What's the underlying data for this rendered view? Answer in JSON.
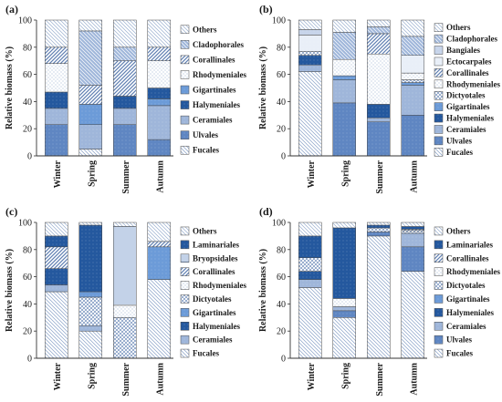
{
  "patterns": {
    "Fucales": {
      "fill": "#ffffff",
      "line": "#8aa2c8",
      "style": "diag-down"
    },
    "Ulvales": {
      "fill": "#5f86c2",
      "line": "#ffffff",
      "style": "none"
    },
    "Ceramiales": {
      "fill": "#9fb6da",
      "line": "#ffffff",
      "style": "none"
    },
    "Halymeniales": {
      "fill": "#24589e",
      "line": "#ffffff",
      "style": "none"
    },
    "Gigartinales": {
      "fill": "#6c9bd8",
      "line": "#ffffff",
      "style": "none"
    },
    "Rhodymeniales": {
      "fill": "#ffffff",
      "line": "#8aa2c8",
      "style": "dots"
    },
    "Corallinales": {
      "fill": "#ffffff",
      "line": "#5f7fb2",
      "style": "diag-up-thick"
    },
    "Cladophorales": {
      "fill": "#9fb6da",
      "line": "#ffffff",
      "style": "diag-down"
    },
    "Others": {
      "fill": "#ffffff",
      "line": "#9bb0d0",
      "style": "diag-down"
    },
    "Bangiales": {
      "fill": "#c7d4ea",
      "line": "#ffffff",
      "style": "none"
    },
    "Ectocarpales": {
      "fill": "#e9eff8",
      "line": "#ffffff",
      "style": "none"
    },
    "Dictyotales": {
      "fill": "#ffffff",
      "line": "#5f7fb2",
      "style": "cross"
    },
    "Laminariales": {
      "fill": "#24589e",
      "line": "#ffffff",
      "style": "none"
    },
    "Bryopsidales": {
      "fill": "#ffffff",
      "line": "#5f86c2",
      "style": "horiz"
    }
  },
  "chart_data": [
    {
      "panel": "(a)",
      "type": "bar",
      "stacked": true,
      "ylabel": "Relative biomass (%)",
      "ylim": [
        0,
        100
      ],
      "yticks": [
        "0",
        "20",
        "40",
        "60",
        "80",
        "100"
      ],
      "categories": [
        "Winter",
        "Spring",
        "Summer",
        "Autumn"
      ],
      "legend": [
        "Others",
        "Cladophorales",
        "Corallinales",
        "Rhodymeniales",
        "Gigartinales",
        "Halymeniales",
        "Ceramiales",
        "Ulvales",
        "Fucales"
      ],
      "series": [
        {
          "name": "Fucales",
          "values": [
            0,
            5,
            0,
            0
          ]
        },
        {
          "name": "Ulvales",
          "values": [
            23,
            0,
            23,
            12
          ]
        },
        {
          "name": "Ceramiales",
          "values": [
            12,
            18,
            12,
            25
          ]
        },
        {
          "name": "Gigartinales",
          "values": [
            0,
            15,
            0,
            5
          ]
        },
        {
          "name": "Halymeniales",
          "values": [
            12,
            0,
            9,
            8
          ]
        },
        {
          "name": "Rhodymeniales",
          "values": [
            21,
            0,
            0,
            20
          ]
        },
        {
          "name": "Corallinales",
          "values": [
            12,
            14,
            26,
            10
          ]
        },
        {
          "name": "Cladophorales",
          "values": [
            0,
            40,
            10,
            0
          ]
        },
        {
          "name": "Others",
          "values": [
            20,
            8,
            20,
            20
          ]
        }
      ]
    },
    {
      "panel": "(b)",
      "type": "bar",
      "stacked": true,
      "ylabel": "Relative biomass (%)",
      "ylim": [
        0,
        100
      ],
      "yticks": [
        "0",
        "20",
        "40",
        "60",
        "80",
        "100"
      ],
      "categories": [
        "Winter",
        "Spring",
        "Summer",
        "Autumn"
      ],
      "legend": [
        "Others",
        "Cladophorales",
        "Bangiales",
        "Ectocarpales",
        "Corallinales",
        "Rhodymeniales",
        "Dictyotales",
        "Gigartinales",
        "Halymeniales",
        "Ceramiales",
        "Ulvales",
        "Fucales"
      ],
      "series": [
        {
          "name": "Fucales",
          "values": [
            62,
            0,
            0,
            0
          ]
        },
        {
          "name": "Ulvales",
          "values": [
            0,
            39,
            25,
            30
          ]
        },
        {
          "name": "Ceramiales",
          "values": [
            5,
            17,
            3,
            22
          ]
        },
        {
          "name": "Halymeniales",
          "values": [
            7,
            0,
            10,
            0
          ]
        },
        {
          "name": "Gigartinales",
          "values": [
            0,
            3,
            0,
            2
          ]
        },
        {
          "name": "Dictyotales",
          "values": [
            3,
            0,
            0,
            2
          ]
        },
        {
          "name": "Rhodymeniales",
          "values": [
            0,
            12,
            37,
            5
          ]
        },
        {
          "name": "Corallinales",
          "values": [
            0,
            0,
            15,
            0
          ]
        },
        {
          "name": "Ectocarpales",
          "values": [
            12,
            0,
            0,
            13
          ]
        },
        {
          "name": "Bangiales",
          "values": [
            4,
            0,
            0,
            0
          ]
        },
        {
          "name": "Cladophorales",
          "values": [
            0,
            20,
            5,
            14
          ]
        },
        {
          "name": "Others",
          "values": [
            7,
            9,
            5,
            12
          ]
        }
      ]
    },
    {
      "panel": "(c)",
      "type": "bar",
      "stacked": true,
      "ylabel": "Relative biomass (%)",
      "ylim": [
        0,
        100
      ],
      "yticks": [
        "0",
        "20",
        "40",
        "60",
        "80",
        "100"
      ],
      "categories": [
        "Winter",
        "Spring",
        "Summer",
        "Autumn"
      ],
      "legend": [
        "Others",
        "Laminariales",
        "Bryopsidales",
        "Corallinales",
        "Rhodymeniales",
        "Dictyotales",
        "Gigartinales",
        "Halymeniales",
        "Ceramiales",
        "Fucales"
      ],
      "series": [
        {
          "name": "Fucales",
          "values": [
            49,
            20,
            0,
            58
          ]
        },
        {
          "name": "Ceramiales",
          "values": [
            5,
            4,
            0,
            0
          ]
        },
        {
          "name": "Halymeniales",
          "values": [
            12,
            0,
            0,
            0
          ]
        },
        {
          "name": "Dictyotales",
          "values": [
            0,
            21,
            30,
            0
          ]
        },
        {
          "name": "Gigartinales",
          "values": [
            0,
            4,
            0,
            24
          ]
        },
        {
          "name": "Rhodymeniales",
          "values": [
            0,
            0,
            9,
            0
          ]
        },
        {
          "name": "Bryopsidales",
          "values": [
            0,
            0,
            58,
            0
          ]
        },
        {
          "name": "Corallinales",
          "values": [
            16,
            0,
            0,
            4
          ]
        },
        {
          "name": "Laminariales",
          "values": [
            8,
            49,
            0,
            0
          ]
        },
        {
          "name": "Others",
          "values": [
            10,
            2,
            3,
            14
          ]
        }
      ]
    },
    {
      "panel": "(d)",
      "type": "bar",
      "stacked": true,
      "ylabel": "Relative biomass (%)",
      "ylim": [
        0,
        100
      ],
      "yticks": [
        "0",
        "20",
        "40",
        "60",
        "80",
        "100"
      ],
      "categories": [
        "Winter",
        "Spring",
        "Summer",
        "Autumn"
      ],
      "legend": [
        "Others",
        "Laminariales",
        "Corallinales",
        "Rhodymeniales",
        "Dictyotales",
        "Gigartinales",
        "Halymeniales",
        "Ceramiales",
        "Ulvales",
        "Fucales"
      ],
      "series": [
        {
          "name": "Fucales",
          "values": [
            52,
            30,
            90,
            64
          ]
        },
        {
          "name": "Ulvales",
          "values": [
            0,
            5,
            3,
            18
          ]
        },
        {
          "name": "Ceramiales",
          "values": [
            6,
            3,
            0,
            10
          ]
        },
        {
          "name": "Halymeniales",
          "values": [
            6,
            0,
            0,
            0
          ]
        },
        {
          "name": "Dictyotales",
          "values": [
            10,
            0,
            3,
            2
          ]
        },
        {
          "name": "Rhodymeniales",
          "values": [
            0,
            6,
            0,
            0
          ]
        },
        {
          "name": "Corallinales",
          "values": [
            0,
            0,
            0,
            1
          ]
        },
        {
          "name": "Laminariales",
          "values": [
            16,
            52,
            2,
            2
          ]
        },
        {
          "name": "Others",
          "values": [
            10,
            4,
            2,
            3
          ]
        }
      ]
    }
  ]
}
